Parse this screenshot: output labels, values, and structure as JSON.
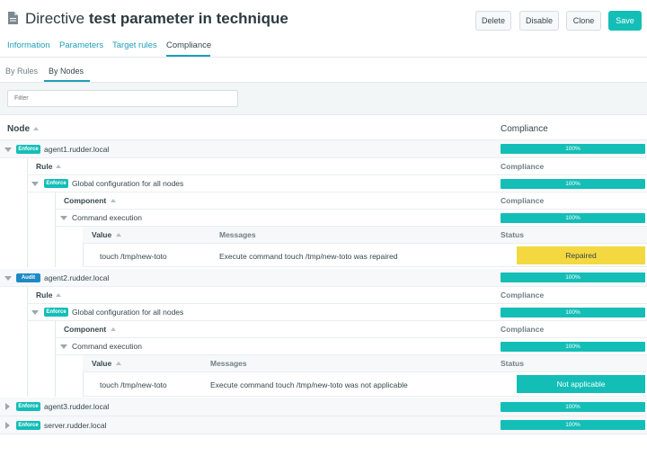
{
  "header": {
    "title_prefix": "Directive",
    "title_name": "test parameter in technique",
    "actions": {
      "delete": "Delete",
      "disable": "Disable",
      "clone": "Clone",
      "save": "Save"
    }
  },
  "tabs": [
    "Information",
    "Parameters",
    "Target rules",
    "Compliance"
  ],
  "active_tab": "Compliance",
  "subtabs": [
    "By Rules",
    "By Nodes"
  ],
  "active_subtab": "By Nodes",
  "filter": {
    "placeholder": "Filter"
  },
  "table": {
    "node_header": "Node",
    "compliance_header": "Compliance",
    "rule_header": "Rule",
    "component_header": "Component",
    "value_header": "Value",
    "messages_header": "Messages",
    "status_header": "Status"
  },
  "nodes": [
    {
      "mode": "Enforce",
      "name": "agent1.rudder.local",
      "compliance": "100%",
      "expanded": true,
      "rule": {
        "mode": "Enforce",
        "name": "Global configuration for all nodes",
        "compliance": "100%"
      },
      "component": {
        "name": "Command execution",
        "compliance": "100%"
      },
      "value": "touch /tmp/new-toto",
      "message": "Execute command touch /tmp/new-toto was repaired",
      "status": "Repaired"
    },
    {
      "mode": "Audit",
      "name": "agent2.rudder.local",
      "compliance": "100%",
      "expanded": true,
      "rule": {
        "mode": "Enforce",
        "name": "Global configuration for all nodes",
        "compliance": "100%"
      },
      "component": {
        "name": "Command execution",
        "compliance": "100%"
      },
      "value": "touch /tmp/new-toto",
      "message": "Execute command touch /tmp/new-toto was not applicable",
      "status": "Not applicable"
    },
    {
      "mode": "Enforce",
      "name": "agent3.rudder.local",
      "compliance": "100%",
      "expanded": false
    },
    {
      "mode": "Enforce",
      "name": "server.rudder.local",
      "compliance": "100%",
      "expanded": false
    }
  ],
  "colors": {
    "accent": "#13beb7",
    "link": "#1d9fb8",
    "audit": "#1d8ac5",
    "repaired": "#f4d83f"
  }
}
